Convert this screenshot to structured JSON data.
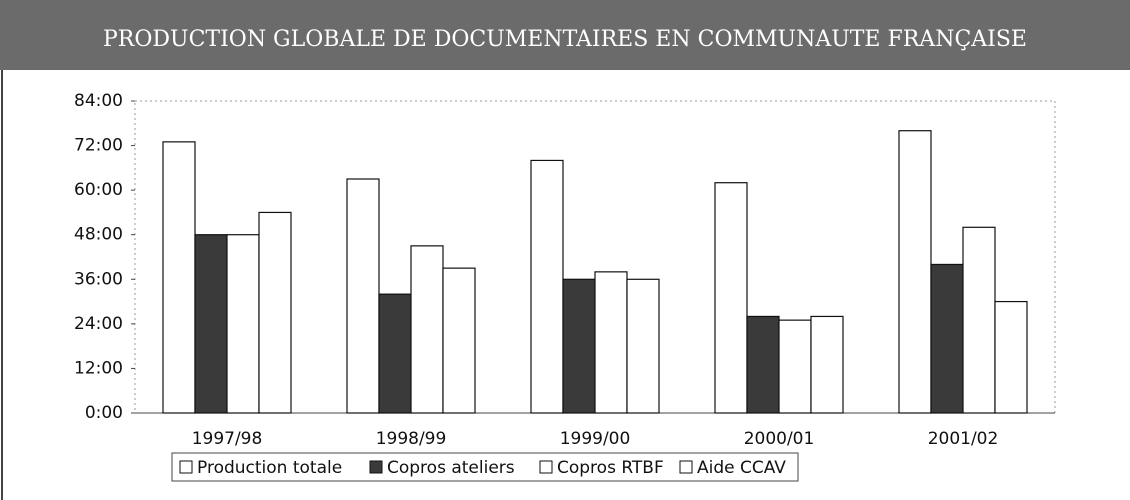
{
  "chart_data": {
    "type": "bar",
    "title": "PRODUCTION GLOBALE DE DOCUMENTAIRES EN COMMUNAUTE FRANÇAISE",
    "categories": [
      "1997/98",
      "1998/99",
      "1999/00",
      "2000/01",
      "2001/02"
    ],
    "series": [
      {
        "name": "Production totale",
        "color": "#ffffff",
        "values": [
          73,
          63,
          68,
          62,
          76
        ]
      },
      {
        "name": "Copros ateliers",
        "color": "#3a3a3a",
        "values": [
          48,
          32,
          36,
          26,
          40
        ]
      },
      {
        "name": "Copros RTBF",
        "color": "#ffffff",
        "values": [
          48,
          45,
          38,
          25,
          50
        ]
      },
      {
        "name": "Aide CCAV",
        "color": "#ffffff",
        "values": [
          54,
          39,
          36,
          26,
          30
        ]
      }
    ],
    "ylim": [
      0,
      84
    ],
    "yticks": [
      {
        "value": 0,
        "label": "0:00"
      },
      {
        "value": 12,
        "label": "12:00"
      },
      {
        "value": 24,
        "label": "24:00"
      },
      {
        "value": 36,
        "label": "36:00"
      },
      {
        "value": 48,
        "label": "48:00"
      },
      {
        "value": 60,
        "label": "60:00"
      },
      {
        "value": 72,
        "label": "72:00"
      },
      {
        "value": 84,
        "label": "84:00"
      }
    ],
    "grid": false,
    "legend": "bottom"
  }
}
